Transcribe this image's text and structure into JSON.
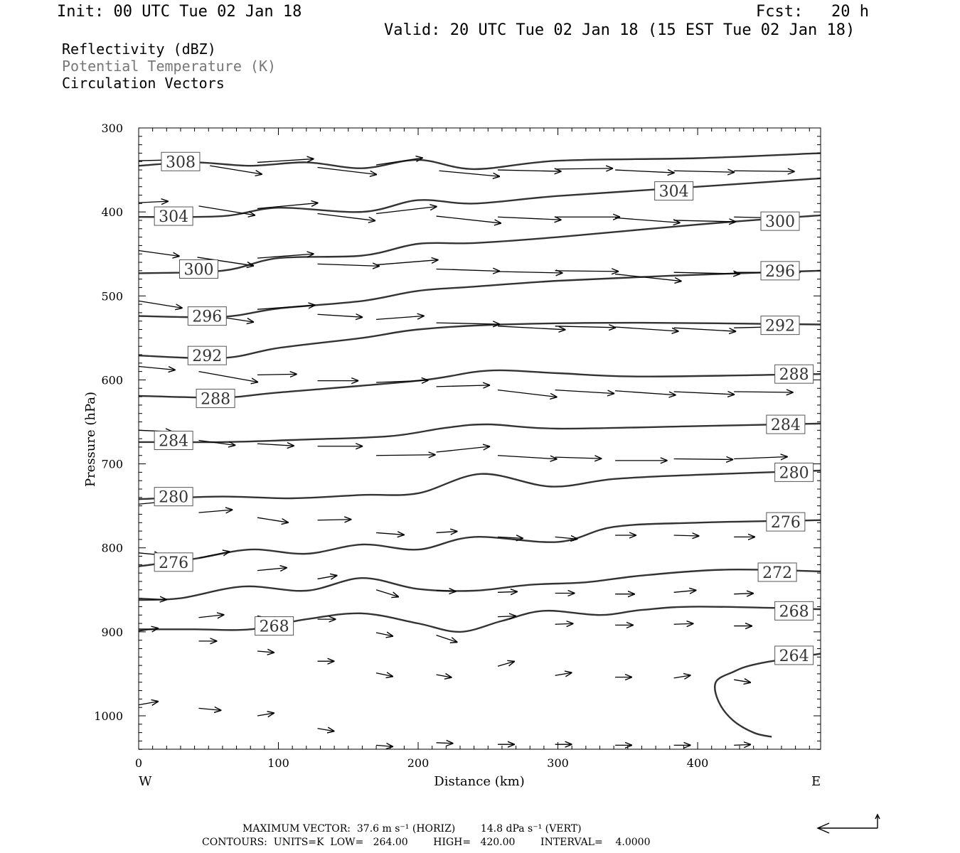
{
  "header": {
    "init": "Init: 00 UTC Tue 02 Jan 18",
    "fcst": "Fcst:   20 h",
    "valid": "Valid: 20 UTC Tue 02 Jan 18 (15 EST Tue 02 Jan 18)"
  },
  "legend": {
    "field1": "Reflectivity (dBZ)",
    "field2": "Potential Temperature (K)",
    "field3": "Circulation Vectors"
  },
  "colors": {
    "contour": "#333333",
    "field2_text": "#777777",
    "axis": "#000000"
  },
  "chart_data": {
    "type": "line",
    "title": "",
    "xlabel": "Distance (km)",
    "ylabel": "Pressure (hPa)",
    "xlim": [
      0,
      488
    ],
    "ylim": [
      1040,
      300
    ],
    "x_ticks": [
      0,
      100,
      200,
      300,
      400
    ],
    "y_ticks": [
      300,
      400,
      500,
      600,
      700,
      800,
      900,
      1000
    ],
    "x_left_label": "W",
    "x_right_label": "E",
    "series": [
      {
        "name": "308",
        "points": [
          [
            0,
            345
          ],
          [
            40,
            341
          ],
          [
            80,
            345
          ],
          [
            120,
            341
          ],
          [
            160,
            348
          ],
          [
            200,
            338
          ],
          [
            240,
            349
          ],
          [
            300,
            339
          ],
          [
            400,
            336
          ],
          [
            488,
            330
          ]
        ]
      },
      {
        "name": "304",
        "points": [
          [
            0,
            406
          ],
          [
            60,
            405
          ],
          [
            100,
            395
          ],
          [
            160,
            400
          ],
          [
            200,
            386
          ],
          [
            240,
            390
          ],
          [
            300,
            381
          ],
          [
            400,
            370
          ],
          [
            488,
            360
          ]
        ]
      },
      {
        "name": "300",
        "points": [
          [
            0,
            473
          ],
          [
            60,
            470
          ],
          [
            100,
            455
          ],
          [
            160,
            452
          ],
          [
            200,
            438
          ],
          [
            240,
            437
          ],
          [
            300,
            430
          ],
          [
            400,
            415
          ],
          [
            488,
            404
          ]
        ]
      },
      {
        "name": "296",
        "points": [
          [
            0,
            524
          ],
          [
            60,
            525
          ],
          [
            100,
            515
          ],
          [
            160,
            506
          ],
          [
            200,
            494
          ],
          [
            240,
            489
          ],
          [
            300,
            482
          ],
          [
            380,
            476
          ],
          [
            488,
            470
          ]
        ]
      },
      {
        "name": "292",
        "points": [
          [
            0,
            571
          ],
          [
            60,
            574
          ],
          [
            100,
            562
          ],
          [
            160,
            550
          ],
          [
            200,
            540
          ],
          [
            260,
            534
          ],
          [
            360,
            532
          ],
          [
            488,
            534
          ]
        ]
      },
      {
        "name": "288",
        "points": [
          [
            0,
            619
          ],
          [
            60,
            621
          ],
          [
            100,
            615
          ],
          [
            200,
            601
          ],
          [
            250,
            589
          ],
          [
            300,
            592
          ],
          [
            360,
            596
          ],
          [
            488,
            593
          ]
        ]
      },
      {
        "name": "284",
        "points": [
          [
            0,
            674
          ],
          [
            60,
            674
          ],
          [
            120,
            671
          ],
          [
            180,
            667
          ],
          [
            220,
            657
          ],
          [
            250,
            653
          ],
          [
            300,
            658
          ],
          [
            400,
            655
          ],
          [
            488,
            652
          ]
        ]
      },
      {
        "name": "280",
        "points": [
          [
            0,
            742
          ],
          [
            60,
            739
          ],
          [
            110,
            741
          ],
          [
            160,
            737
          ],
          [
            200,
            735
          ],
          [
            245,
            712
          ],
          [
            295,
            727
          ],
          [
            340,
            718
          ],
          [
            400,
            713
          ],
          [
            488,
            708
          ]
        ]
      },
      {
        "name": "276",
        "points": [
          [
            0,
            822
          ],
          [
            40,
            813
          ],
          [
            80,
            802
          ],
          [
            120,
            807
          ],
          [
            160,
            796
          ],
          [
            200,
            802
          ],
          [
            240,
            787
          ],
          [
            300,
            793
          ],
          [
            340,
            775
          ],
          [
            400,
            770
          ],
          [
            488,
            767
          ]
        ]
      },
      {
        "name": "272",
        "points": [
          [
            0,
            862
          ],
          [
            30,
            860
          ],
          [
            75,
            846
          ],
          [
            120,
            851
          ],
          [
            160,
            836
          ],
          [
            200,
            849
          ],
          [
            240,
            851
          ],
          [
            280,
            844
          ],
          [
            320,
            841
          ],
          [
            360,
            833
          ],
          [
            420,
            826
          ],
          [
            488,
            828
          ]
        ]
      },
      {
        "name": "268",
        "points": [
          [
            0,
            897
          ],
          [
            40,
            897
          ],
          [
            80,
            897
          ],
          [
            120,
            885
          ],
          [
            160,
            878
          ],
          [
            200,
            890
          ],
          [
            230,
            900
          ],
          [
            260,
            887
          ],
          [
            290,
            875
          ],
          [
            330,
            880
          ],
          [
            360,
            874
          ],
          [
            400,
            870
          ],
          [
            488,
            873
          ]
        ]
      },
      {
        "name": "264",
        "points": [
          [
            453,
            1025
          ],
          [
            440,
            1020
          ],
          [
            425,
            1005
          ],
          [
            415,
            983
          ],
          [
            413,
            960
          ],
          [
            425,
            948
          ],
          [
            443,
            938
          ],
          [
            488,
            926
          ]
        ]
      }
    ],
    "contour_labels": [
      {
        "text": "308",
        "x": 30,
        "p": 340
      },
      {
        "text": "304",
        "x": 25,
        "p": 405
      },
      {
        "text": "304",
        "x": 383,
        "p": 375
      },
      {
        "text": "300",
        "x": 43,
        "p": 468
      },
      {
        "text": "300",
        "x": 459,
        "p": 411
      },
      {
        "text": "296",
        "x": 49,
        "p": 524
      },
      {
        "text": "296",
        "x": 459,
        "p": 470
      },
      {
        "text": "292",
        "x": 49,
        "p": 571
      },
      {
        "text": "292",
        "x": 459,
        "p": 535
      },
      {
        "text": "288",
        "x": 55,
        "p": 622
      },
      {
        "text": "288",
        "x": 469,
        "p": 593
      },
      {
        "text": "284",
        "x": 25,
        "p": 672
      },
      {
        "text": "284",
        "x": 463,
        "p": 653
      },
      {
        "text": "280",
        "x": 25,
        "p": 739
      },
      {
        "text": "280",
        "x": 469,
        "p": 710
      },
      {
        "text": "276",
        "x": 25,
        "p": 817
      },
      {
        "text": "276",
        "x": 463,
        "p": 769
      },
      {
        "text": "272",
        "x": 457,
        "p": 829
      },
      {
        "text": "268",
        "x": 97,
        "p": 893
      },
      {
        "text": "268",
        "x": 469,
        "p": 875
      },
      {
        "text": "264",
        "x": 469,
        "p": 928
      }
    ],
    "vectors": [
      [
        0,
        339,
        22,
        -1
      ],
      [
        51,
        345,
        37,
        12
      ],
      [
        85,
        341,
        40,
        -5
      ],
      [
        128,
        347,
        42,
        10
      ],
      [
        170,
        344,
        33,
        -10
      ],
      [
        215,
        351,
        43,
        8
      ],
      [
        257,
        350,
        45,
        2
      ],
      [
        298,
        349,
        41,
        -1
      ],
      [
        341,
        350,
        42,
        4
      ],
      [
        383,
        351,
        43,
        2
      ],
      [
        426,
        351,
        43,
        1
      ],
      [
        0,
        389,
        21,
        -2
      ],
      [
        43,
        393,
        40,
        13
      ],
      [
        85,
        396,
        43,
        -8
      ],
      [
        128,
        402,
        41,
        10
      ],
      [
        170,
        402,
        43,
        -10
      ],
      [
        213,
        405,
        46,
        10
      ],
      [
        257,
        406,
        45,
        4
      ],
      [
        298,
        406,
        46,
        0
      ],
      [
        341,
        407,
        46,
        7
      ],
      [
        383,
        410,
        44,
        2
      ],
      [
        426,
        406,
        43,
        2
      ],
      [
        0,
        446,
        29,
        8
      ],
      [
        42,
        454,
        40,
        12
      ],
      [
        85,
        455,
        40,
        -6
      ],
      [
        128,
        462,
        44,
        3
      ],
      [
        170,
        463,
        44,
        -7
      ],
      [
        213,
        468,
        45,
        3
      ],
      [
        257,
        471,
        46,
        2
      ],
      [
        298,
        470,
        45,
        1
      ],
      [
        341,
        474,
        47,
        10
      ],
      [
        383,
        472,
        47,
        2
      ],
      [
        426,
        472,
        47,
        0
      ],
      [
        0,
        506,
        31,
        10
      ],
      [
        42,
        521,
        40,
        12
      ],
      [
        85,
        516,
        41,
        -6
      ],
      [
        128,
        522,
        32,
        4
      ],
      [
        170,
        528,
        34,
        -5
      ],
      [
        213,
        532,
        45,
        2
      ],
      [
        257,
        536,
        48,
        5
      ],
      [
        298,
        536,
        43,
        2
      ],
      [
        341,
        537,
        45,
        6
      ],
      [
        383,
        538,
        44,
        5
      ],
      [
        426,
        538,
        44,
        -2
      ],
      [
        0,
        584,
        26,
        5
      ],
      [
        43,
        590,
        42,
        15
      ],
      [
        85,
        594,
        28,
        -1
      ],
      [
        128,
        601,
        29,
        0
      ],
      [
        170,
        603,
        37,
        -3
      ],
      [
        213,
        608,
        38,
        -2
      ],
      [
        257,
        612,
        42,
        10
      ],
      [
        298,
        612,
        42,
        5
      ],
      [
        341,
        613,
        43,
        6
      ],
      [
        383,
        614,
        43,
        4
      ],
      [
        426,
        614,
        42,
        1
      ],
      [
        0,
        660,
        24,
        2
      ],
      [
        43,
        672,
        26,
        7
      ],
      [
        85,
        676,
        26,
        3
      ],
      [
        128,
        679,
        32,
        0
      ],
      [
        170,
        690,
        42,
        -1
      ],
      [
        213,
        686,
        38,
        -8
      ],
      [
        257,
        690,
        42,
        5
      ],
      [
        298,
        692,
        33,
        2
      ],
      [
        341,
        696,
        37,
        0
      ],
      [
        383,
        694,
        42,
        1
      ],
      [
        426,
        694,
        38,
        -3
      ],
      [
        0,
        748,
        21,
        -4
      ],
      [
        43,
        758,
        24,
        -4
      ],
      [
        85,
        764,
        22,
        7
      ],
      [
        128,
        767,
        24,
        -1
      ],
      [
        170,
        782,
        20,
        3
      ],
      [
        213,
        782,
        15,
        -2
      ],
      [
        257,
        787,
        18,
        2
      ],
      [
        298,
        787,
        16,
        3
      ],
      [
        341,
        785,
        15,
        0
      ],
      [
        383,
        785,
        18,
        1
      ],
      [
        426,
        787,
        15,
        0
      ],
      [
        0,
        806,
        16,
        3
      ],
      [
        43,
        812,
        22,
        -9
      ],
      [
        85,
        827,
        21,
        -4
      ],
      [
        128,
        837,
        14,
        -5
      ],
      [
        170,
        850,
        16,
        10
      ],
      [
        213,
        851,
        14,
        1
      ],
      [
        257,
        853,
        14,
        -1
      ],
      [
        298,
        854,
        14,
        0
      ],
      [
        341,
        855,
        14,
        0
      ],
      [
        383,
        853,
        16,
        -3
      ],
      [
        426,
        855,
        14,
        -1
      ],
      [
        0,
        860,
        20,
        2
      ],
      [
        43,
        883,
        18,
        -4
      ],
      [
        85,
        881,
        16,
        7
      ],
      [
        128,
        885,
        13,
        0
      ],
      [
        170,
        901,
        12,
        5
      ],
      [
        213,
        904,
        15,
        10
      ],
      [
        257,
        882,
        13,
        -1
      ],
      [
        298,
        891,
        13,
        -1
      ],
      [
        341,
        892,
        13,
        0
      ],
      [
        383,
        891,
        14,
        -1
      ],
      [
        426,
        893,
        13,
        0
      ],
      [
        0,
        899,
        14,
        -4
      ],
      [
        43,
        911,
        13,
        0
      ],
      [
        85,
        923,
        12,
        2
      ],
      [
        128,
        935,
        12,
        0
      ],
      [
        170,
        949,
        12,
        5
      ],
      [
        213,
        951,
        11,
        4
      ],
      [
        257,
        941,
        12,
        -7
      ],
      [
        298,
        952,
        12,
        -4
      ],
      [
        341,
        954,
        12,
        0
      ],
      [
        383,
        955,
        12,
        -4
      ],
      [
        426,
        957,
        12,
        4
      ],
      [
        0,
        987,
        14,
        -5
      ],
      [
        43,
        991,
        16,
        3
      ],
      [
        85,
        1000,
        12,
        -4
      ],
      [
        128,
        1015,
        12,
        4
      ],
      [
        170,
        1035,
        12,
        2
      ],
      [
        213,
        1032,
        12,
        1
      ],
      [
        257,
        1034,
        12,
        0
      ],
      [
        298,
        1034,
        12,
        0
      ],
      [
        341,
        1035,
        12,
        0
      ],
      [
        383,
        1035,
        12,
        0
      ],
      [
        426,
        1035,
        12,
        -1
      ]
    ]
  },
  "footer": {
    "max_vector": "MAXIMUM VECTOR:  37.6 m s⁻¹ (HORIZ)        14.8 dPa s⁻¹ (VERT)",
    "contours": "CONTOURS:  UNITS=K  LOW=   264.00        HIGH=   420.00        INTERVAL=    4.0000"
  }
}
